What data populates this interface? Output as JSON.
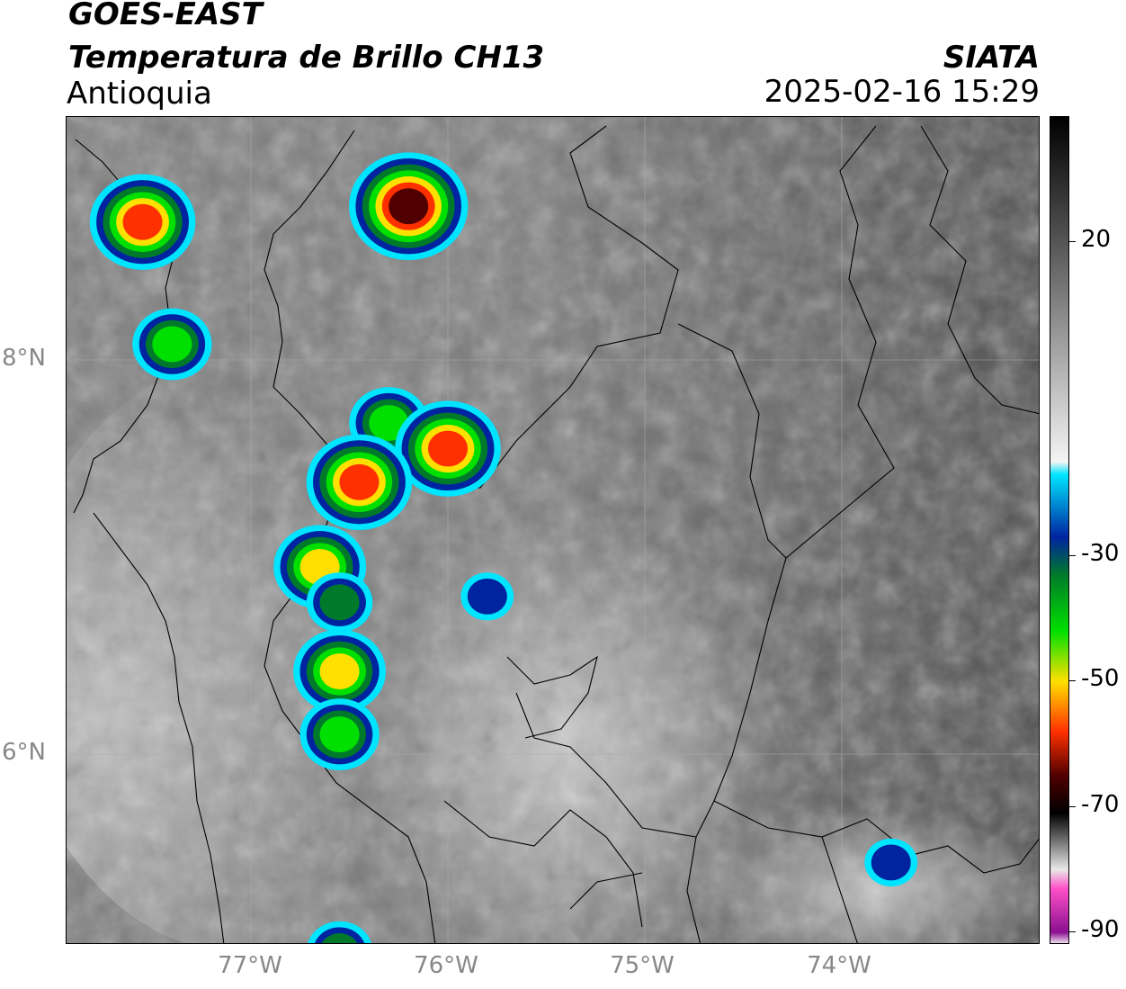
{
  "header": {
    "satellite": "GOES-EAST",
    "product": "Temperatura de Brillo CH13",
    "region": "Antioquia",
    "organization": "SIATA",
    "datetime": "2025-02-16 15:29"
  },
  "axes": {
    "lat_labels": [
      "8°N",
      "6°N"
    ],
    "lon_labels": [
      "77°W",
      "76°W",
      "75°W",
      "74°W"
    ],
    "lat_values": [
      8,
      6
    ],
    "lon_values": [
      -77,
      -76,
      -75,
      -74
    ]
  },
  "colorbar": {
    "ticks": [
      "20",
      "-30",
      "-50",
      "-70",
      "-90"
    ],
    "tick_values": [
      20,
      -30,
      -50,
      -70,
      -90
    ],
    "range": [
      -92,
      40
    ],
    "stops": [
      {
        "v": 40,
        "color": "#000000"
      },
      {
        "v": 20,
        "color": "#555555"
      },
      {
        "v": -15,
        "color": "#f4f4f4"
      },
      {
        "v": -17,
        "color": "#00e5ff"
      },
      {
        "v": -27,
        "color": "#0024a0"
      },
      {
        "v": -33,
        "color": "#007a2a"
      },
      {
        "v": -42,
        "color": "#00e000"
      },
      {
        "v": -50,
        "color": "#ffe000"
      },
      {
        "v": -58,
        "color": "#ff3000"
      },
      {
        "v": -65,
        "color": "#500000"
      },
      {
        "v": -71,
        "color": "#000000"
      },
      {
        "v": -80,
        "color": "#e8e8e8"
      },
      {
        "v": -83,
        "color": "#ff50c8"
      },
      {
        "v": -90,
        "color": "#8a1090"
      },
      {
        "v": -92,
        "color": "#ffffff"
      }
    ]
  },
  "storm_cells": [
    {
      "lon": -76.2,
      "lat": 8.78,
      "tmin": -68
    },
    {
      "lon": -77.55,
      "lat": 8.7,
      "tmin": -60
    },
    {
      "lon": -77.4,
      "lat": 8.08,
      "tmin": -45
    },
    {
      "lon": -76.3,
      "lat": 7.68,
      "tmin": -48
    },
    {
      "lon": -76.0,
      "lat": 7.55,
      "tmin": -60
    },
    {
      "lon": -76.45,
      "lat": 7.38,
      "tmin": -58
    },
    {
      "lon": -76.65,
      "lat": 6.95,
      "tmin": -55
    },
    {
      "lon": -76.55,
      "lat": 6.77,
      "tmin": -38
    },
    {
      "lon": -75.8,
      "lat": 6.8,
      "tmin": -32
    },
    {
      "lon": -76.55,
      "lat": 6.42,
      "tmin": -50
    },
    {
      "lon": -76.55,
      "lat": 6.1,
      "tmin": -45
    },
    {
      "lon": -76.55,
      "lat": 5.0,
      "tmin": -40
    },
    {
      "lon": -73.75,
      "lat": 5.45,
      "tmin": -32
    }
  ]
}
